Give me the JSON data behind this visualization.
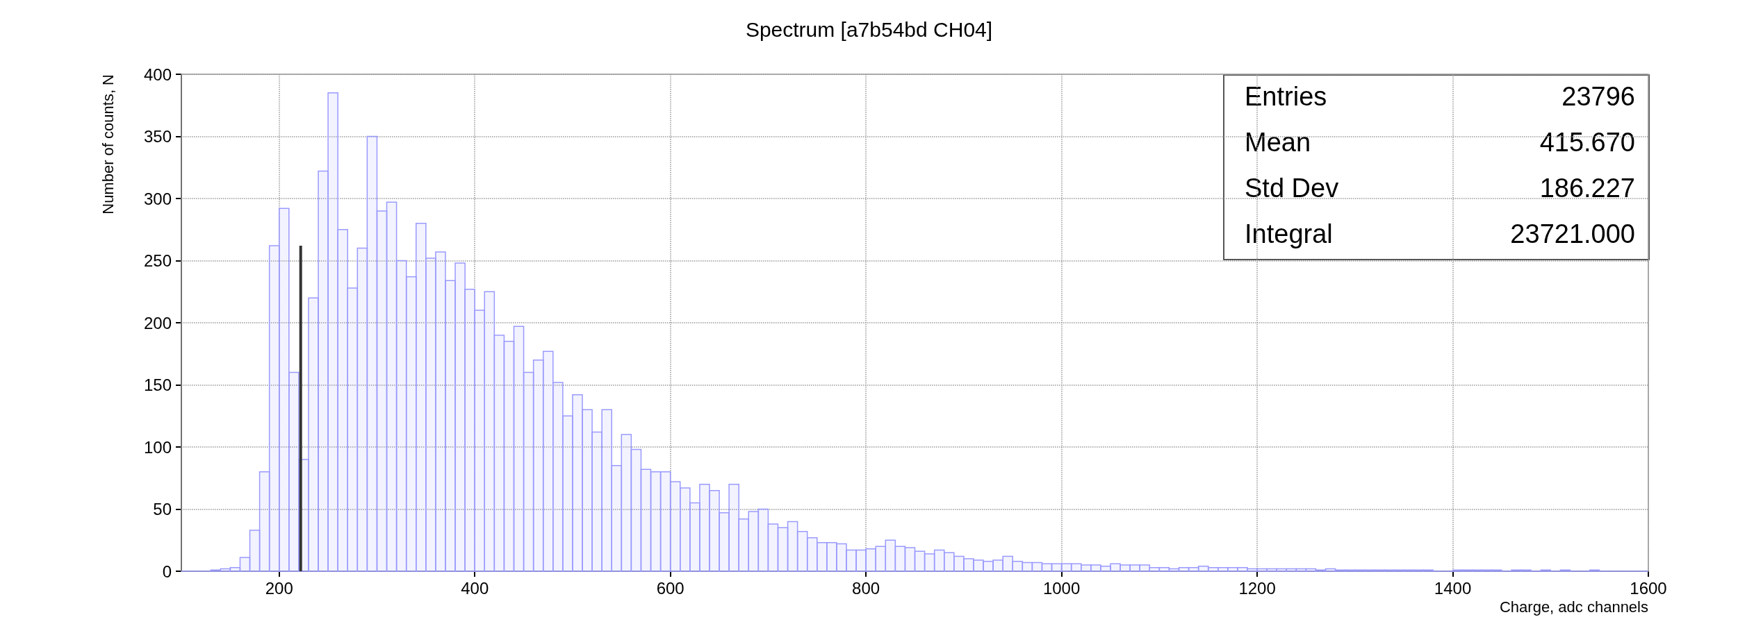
{
  "chart_data": {
    "type": "histogram",
    "title": "Spectrum [a7b54bd CH04]",
    "xlabel": "Charge, adc channels",
    "ylabel": "Number of counts, N",
    "bins": [
      100,
      110,
      120,
      130,
      140,
      150,
      160,
      170,
      180,
      190,
      200,
      210,
      220,
      230,
      240,
      250,
      260,
      270,
      280,
      290,
      300,
      310,
      320,
      330,
      340,
      350,
      360,
      370,
      380,
      390,
      400,
      410,
      420,
      430,
      440,
      450,
      460,
      470,
      480,
      490,
      500,
      510,
      520,
      530,
      540,
      550,
      560,
      570,
      580,
      590,
      600,
      610,
      620,
      630,
      640,
      650,
      660,
      670,
      680,
      690,
      700,
      710,
      720,
      730,
      740,
      750,
      760,
      770,
      780,
      790,
      800,
      810,
      820,
      830,
      840,
      850,
      860,
      870,
      880,
      890,
      900,
      910,
      920,
      930,
      940,
      950,
      960,
      970,
      980,
      990,
      1000,
      1010,
      1020,
      1030,
      1040,
      1050,
      1060,
      1070,
      1080,
      1090,
      1100,
      1110,
      1120,
      1130,
      1140,
      1150,
      1160,
      1170,
      1180,
      1190,
      1200,
      1210,
      1220,
      1230,
      1240,
      1250,
      1260,
      1270,
      1280,
      1290,
      1300,
      1310,
      1320,
      1330,
      1340,
      1350,
      1360,
      1370,
      1380,
      1390,
      1400,
      1410,
      1420,
      1430,
      1440,
      1450,
      1460,
      1470,
      1480,
      1490,
      1500,
      1510,
      1520,
      1530,
      1540,
      1550,
      1560,
      1570,
      1580,
      1590,
      1600
    ],
    "values": [
      0,
      0,
      0,
      1,
      2,
      3,
      11,
      33,
      80,
      262,
      292,
      160,
      90,
      220,
      322,
      385,
      275,
      228,
      260,
      350,
      290,
      297,
      250,
      237,
      280,
      252,
      257,
      234,
      248,
      227,
      210,
      225,
      190,
      185,
      197,
      160,
      170,
      177,
      152,
      125,
      142,
      130,
      112,
      130,
      85,
      110,
      98,
      82,
      80,
      80,
      72,
      67,
      55,
      70,
      65,
      47,
      70,
      42,
      48,
      50,
      38,
      35,
      40,
      32,
      27,
      23,
      23,
      22,
      17,
      17,
      18,
      20,
      25,
      20,
      19,
      16,
      14,
      17,
      15,
      12,
      10,
      9,
      8,
      9,
      12,
      8,
      7,
      7,
      6,
      6,
      6,
      6,
      5,
      5,
      4,
      6,
      5,
      5,
      5,
      3,
      3,
      2,
      3,
      3,
      4,
      3,
      3,
      3,
      3,
      2,
      2,
      2,
      2,
      2,
      2,
      2,
      1,
      2,
      1,
      1,
      1,
      1,
      1,
      1,
      1,
      1,
      1,
      1,
      0,
      0,
      1,
      1,
      1,
      1,
      1,
      0,
      1,
      1,
      0,
      1,
      0,
      1,
      0,
      0,
      1,
      0,
      0,
      0,
      0,
      0
    ],
    "color": "#9a9aff",
    "series": [
      {
        "type": "line",
        "x": [
          222,
          222
        ],
        "values": [
          0,
          262
        ],
        "color": "#333333"
      }
    ],
    "xlim": [
      100,
      1600
    ],
    "xticks": [
      200,
      400,
      600,
      800,
      1000,
      1200,
      1400,
      1600
    ],
    "ylim": [
      0,
      400
    ],
    "yticks": [
      0,
      50,
      100,
      150,
      200,
      250,
      300,
      350,
      400
    ],
    "grid": true,
    "annotations": [
      "Entries",
      "23796",
      "Mean",
      "415.670",
      "Std Dev",
      "186.227",
      "Integral",
      "23721.000"
    ]
  }
}
